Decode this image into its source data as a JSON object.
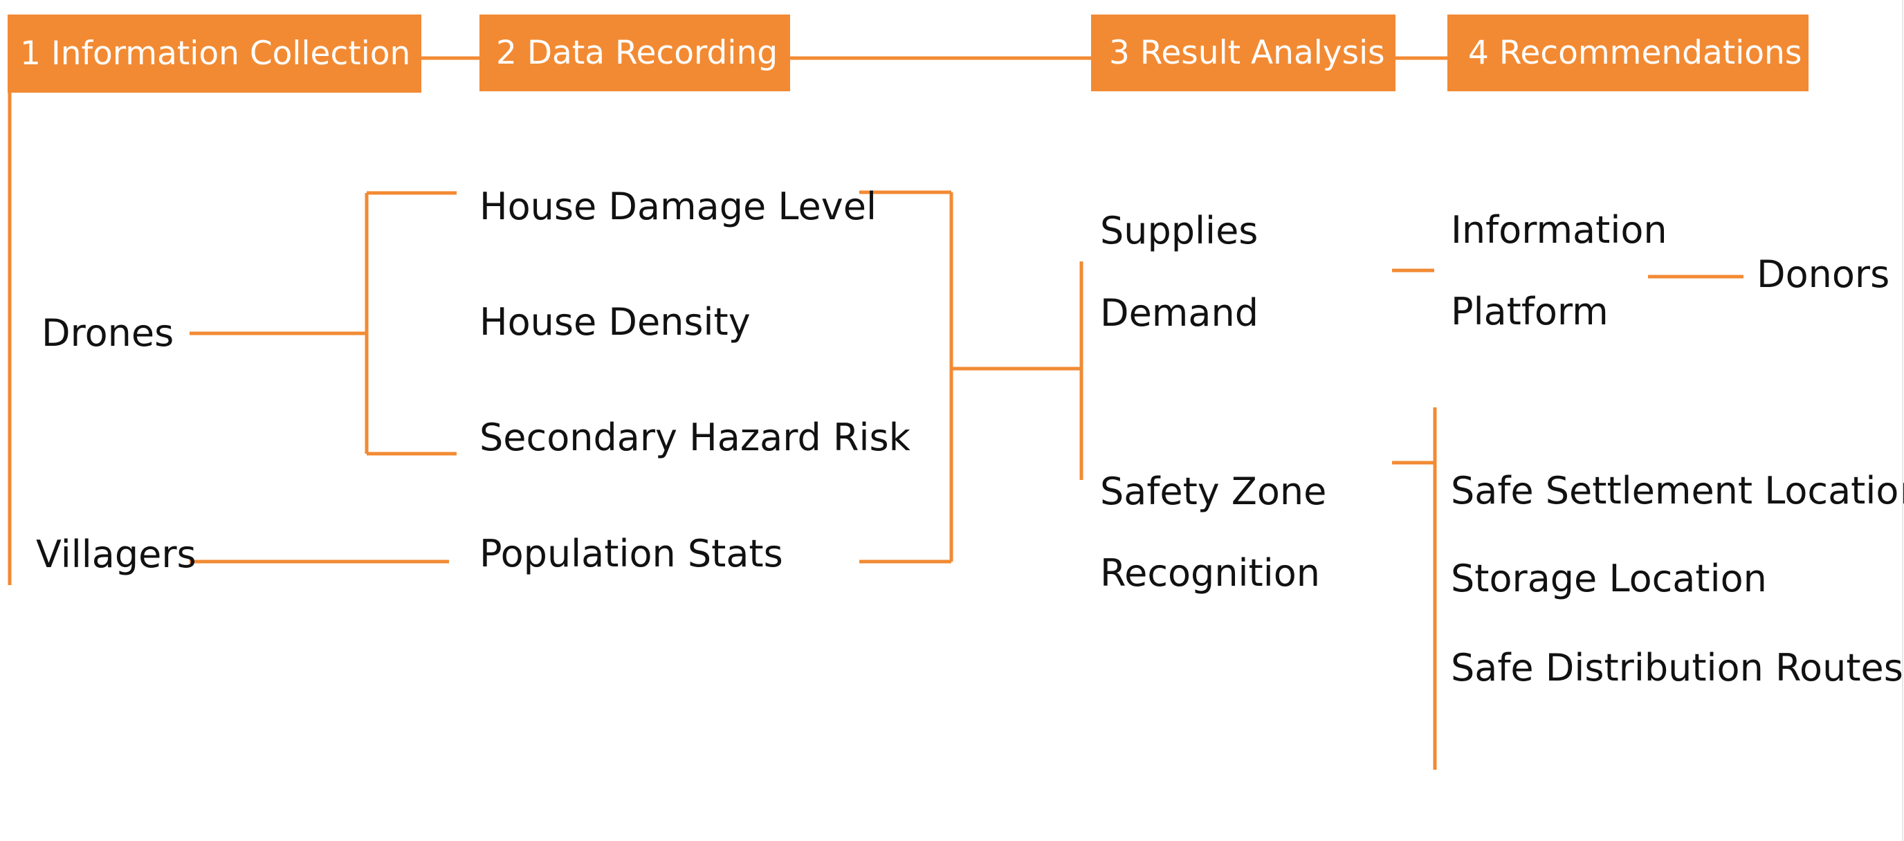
{
  "colors": {
    "accent": "#F28A33",
    "text": "#111111",
    "background": "#FFFFFF"
  },
  "stages": [
    {
      "id": "stage-information-collection",
      "label": "1 Information Collection"
    },
    {
      "id": "stage-data-recording",
      "label": "2 Data Recording"
    },
    {
      "id": "stage-result-analysis",
      "label": "3 Result Analysis"
    },
    {
      "id": "stage-recommendations",
      "label": "4 Recommendations"
    }
  ],
  "sources": {
    "drones": "Drones",
    "villagers": "Villagers"
  },
  "records": {
    "house_damage_level": "House Damage Level",
    "house_density": "House Density",
    "secondary_hazard_risk": "Secondary Hazard Risk",
    "population_stats": "Population Stats"
  },
  "analysis": {
    "supplies_demand": [
      "Supplies",
      "Demand"
    ],
    "safety_zone_recognition": [
      "Safety Zone",
      "Recognition"
    ]
  },
  "recommendations": {
    "information_platform": [
      "Information",
      "Platform"
    ],
    "donors": "Donors",
    "safe_settlement_locations": "Safe Settlement Locations",
    "storage_location": "Storage Location",
    "safe_distribution_routes": "Safe Distribution Routes"
  }
}
